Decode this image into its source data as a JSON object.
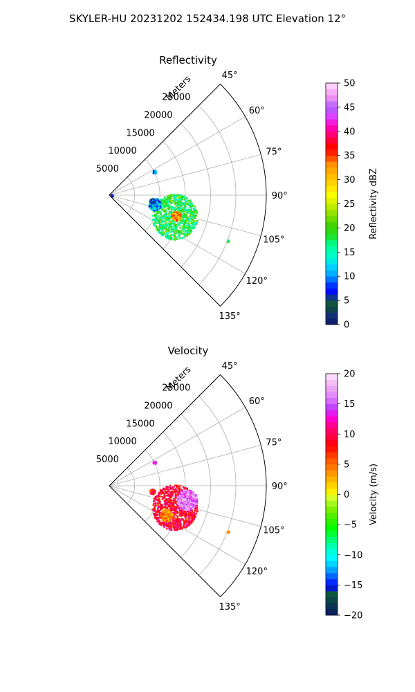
{
  "suptitle": "SKYLER-HU  20231202  152434.198 UTC Elevation 12°",
  "chart_data": [
    {
      "type": "polar-sector",
      "title": "Reflectivity",
      "radial_label": "Meters",
      "radial_ticks": [
        5000,
        10000,
        15000,
        20000,
        25000
      ],
      "angle_ticks": [
        "45°",
        "60°",
        "75°",
        "90°",
        "105°",
        "120°",
        "135°"
      ],
      "angle_range_deg": [
        45,
        135
      ],
      "r_max": 31000,
      "grid": true,
      "colorbar": {
        "label": "Reflectivity dBZ",
        "range": [
          0,
          50
        ],
        "ticks": [
          0,
          5,
          10,
          15,
          20,
          25,
          30,
          35,
          40,
          45,
          50
        ]
      },
      "echo_regions": [
        {
          "az_deg": 108,
          "range_m": 13500,
          "value": 18,
          "extent_m": 4500
        },
        {
          "az_deg": 107,
          "range_m": 13700,
          "value": 32,
          "extent_m": 900
        },
        {
          "az_deg": 101,
          "range_m": 9000,
          "value": 11,
          "extent_m": 1200
        },
        {
          "az_deg": 97,
          "range_m": 8500,
          "value": 6,
          "extent_m": 500
        },
        {
          "az_deg": 62,
          "range_m": 10000,
          "value": 8,
          "extent_m": 300
        },
        {
          "az_deg": 88,
          "range_m": 400,
          "value": 3,
          "extent_m": 200
        },
        {
          "az_deg": 111,
          "range_m": 25000,
          "value": 17,
          "extent_m": 200
        }
      ]
    },
    {
      "type": "polar-sector",
      "title": "Velocity",
      "radial_label": "Meters",
      "radial_ticks": [
        5000,
        10000,
        15000,
        20000,
        25000
      ],
      "angle_ticks": [
        "45°",
        "60°",
        "75°",
        "90°",
        "105°",
        "120°",
        "135°"
      ],
      "angle_range_deg": [
        45,
        135
      ],
      "r_max": 31000,
      "grid": true,
      "colorbar": {
        "label": "Velocity (m/s)",
        "range": [
          -20,
          20
        ],
        "ticks": [
          -20,
          -15,
          -10,
          -5,
          0,
          5,
          10,
          15,
          20
        ]
      },
      "echo_regions": [
        {
          "az_deg": 108,
          "range_m": 13500,
          "value": 9,
          "extent_m": 4500
        },
        {
          "az_deg": 100,
          "range_m": 15500,
          "value": 16,
          "extent_m": 2000
        },
        {
          "az_deg": 117,
          "range_m": 12500,
          "value": 4,
          "extent_m": 1200
        },
        {
          "az_deg": 97,
          "range_m": 8500,
          "value": 8,
          "extent_m": 500
        },
        {
          "az_deg": 62,
          "range_m": 10000,
          "value": 15,
          "extent_m": 300
        },
        {
          "az_deg": 111,
          "range_m": 25000,
          "value": 3,
          "extent_m": 200
        }
      ]
    }
  ]
}
